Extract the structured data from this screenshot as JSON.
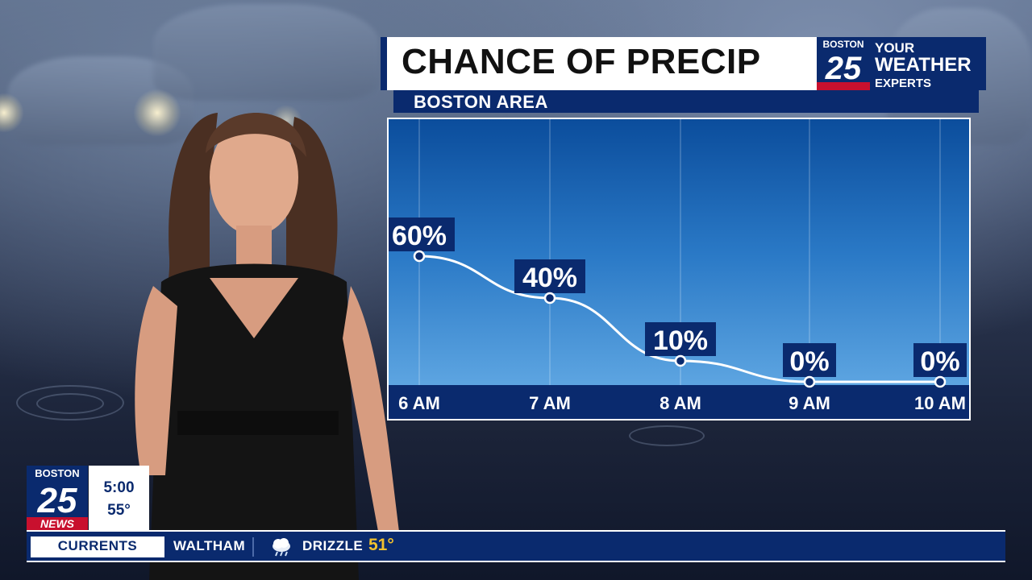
{
  "chart_title": "CHANCE OF PRECIP",
  "chart_subtitle": "BOSTON AREA",
  "logo": {
    "station": "BOSTON",
    "number": "25",
    "tagline_1": "YOUR",
    "tagline_2": "WEATHER",
    "tagline_3": "EXPERTS",
    "news": "NEWS"
  },
  "clock": {
    "time": "5:00",
    "temp": "55°"
  },
  "ticker": {
    "label": "CURRENTS",
    "location": "WALTHAM",
    "condition": "DRIZZLE",
    "temp": "51°",
    "icon": "drizzle-cloud-icon"
  },
  "colors": {
    "navy": "#0a2a6e",
    "accent_red": "#c8102e",
    "temp_yellow": "#f2c12e"
  },
  "chart_data": {
    "type": "line",
    "categories": [
      "6 AM",
      "7 AM",
      "8 AM",
      "9 AM",
      "10 AM"
    ],
    "values": [
      60,
      40,
      10,
      0,
      0
    ],
    "labels": [
      "60%",
      "40%",
      "10%",
      "0%",
      "0%"
    ],
    "ylim": [
      0,
      100
    ],
    "grid": true
  }
}
